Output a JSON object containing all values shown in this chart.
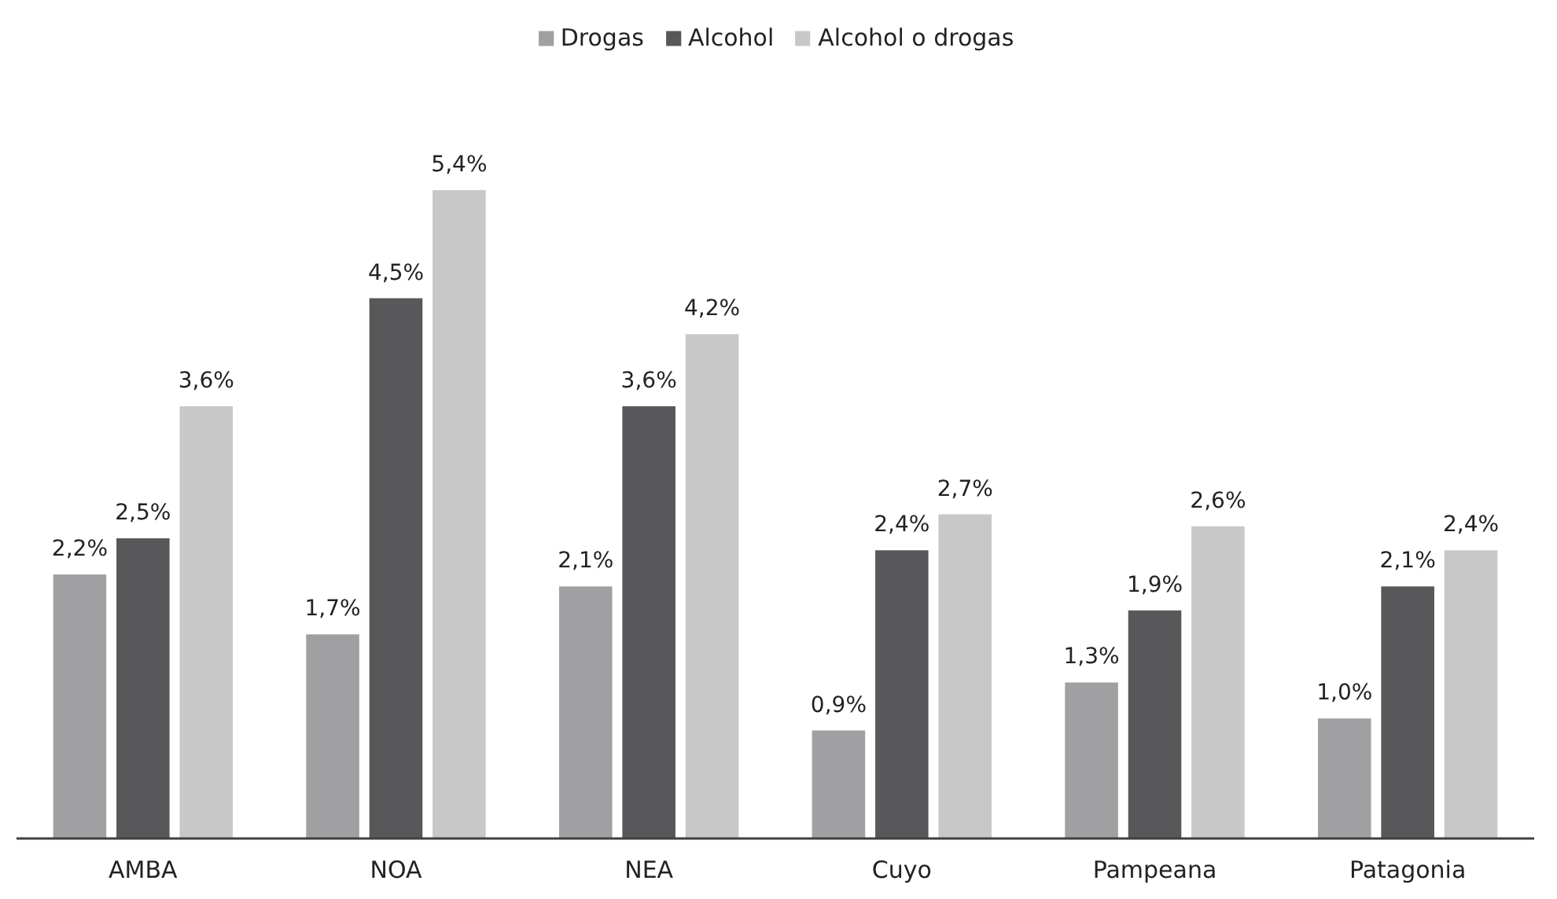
{
  "chart_data": {
    "type": "bar",
    "categories": [
      "AMBA",
      "NOA",
      "NEA",
      "Cuyo",
      "Pampeana",
      "Patagonia"
    ],
    "series": [
      {
        "name": "Drogas",
        "color": "#a0a0a2",
        "values": [
          2.2,
          1.7,
          2.1,
          0.9,
          1.3,
          1.0
        ],
        "value_labels": [
          "2,2%",
          "1,7%",
          "2,1%",
          "0,9%",
          "1,3%",
          "1,0%"
        ]
      },
      {
        "name": "Alcohol",
        "color": "#58585a",
        "values": [
          2.5,
          4.5,
          3.6,
          2.4,
          1.9,
          2.1
        ],
        "value_labels": [
          "2,5%",
          "4,5%",
          "3,6%",
          "2,4%",
          "1,9%",
          "2,1%"
        ]
      },
      {
        "name": "Alcohol o drogas",
        "color": "#c8c8c8",
        "values": [
          3.6,
          5.4,
          4.2,
          2.7,
          2.6,
          2.4
        ],
        "value_labels": [
          "3,6%",
          "5,4%",
          "4,2%",
          "2,7%",
          "2,6%",
          "2,4%"
        ]
      }
    ],
    "legend": "top",
    "grid": false
  }
}
